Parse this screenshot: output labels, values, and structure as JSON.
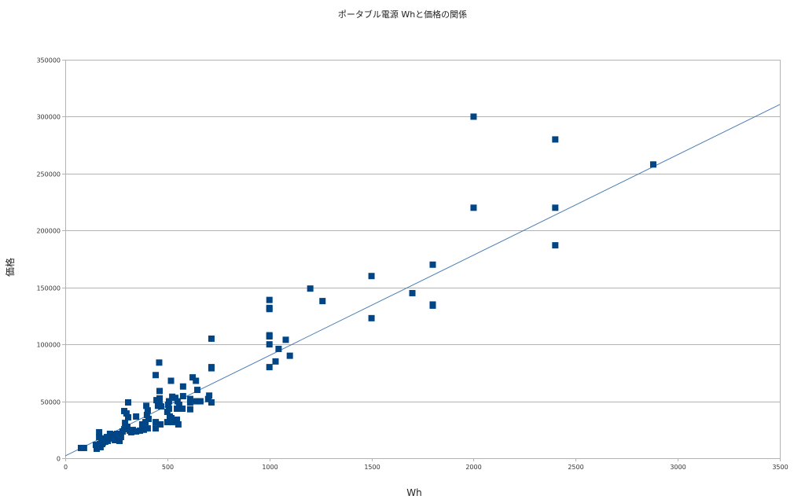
{
  "chart_data": {
    "type": "scatter",
    "title": "ポータブル電源 Whと価格の関係",
    "xlabel": "Wh",
    "ylabel": "価格",
    "xlim": [
      0,
      3500
    ],
    "ylim": [
      0,
      350000
    ],
    "xticks": [
      0,
      500,
      1000,
      1500,
      2000,
      2500,
      3000,
      3500
    ],
    "yticks": [
      0,
      50000,
      100000,
      150000,
      200000,
      250000,
      300000,
      350000
    ],
    "grid": "horizontal",
    "marker": "square",
    "marker_color": "#004586",
    "grid_color": "#b3b3b3",
    "trendline": {
      "type": "linear",
      "slope": 88.2,
      "intercept": 2000,
      "color": "#4a7eb5"
    },
    "points": [
      [
        77,
        9000
      ],
      [
        92,
        9000
      ],
      [
        150,
        11700
      ],
      [
        154,
        8300
      ],
      [
        162,
        10400
      ],
      [
        166,
        22800
      ],
      [
        166,
        18600
      ],
      [
        169,
        12400
      ],
      [
        173,
        9700
      ],
      [
        177,
        16600
      ],
      [
        181,
        12400
      ],
      [
        185,
        13800
      ],
      [
        193,
        17300
      ],
      [
        196,
        14500
      ],
      [
        204,
        18600
      ],
      [
        208,
        15200
      ],
      [
        219,
        21400
      ],
      [
        219,
        17300
      ],
      [
        231,
        17900
      ],
      [
        239,
        20700
      ],
      [
        243,
        19300
      ],
      [
        243,
        15900
      ],
      [
        254,
        21400
      ],
      [
        258,
        15900
      ],
      [
        266,
        20700
      ],
      [
        266,
        15200
      ],
      [
        273,
        18600
      ],
      [
        281,
        23500
      ],
      [
        289,
        25500
      ],
      [
        289,
        41400
      ],
      [
        293,
        31000
      ],
      [
        300,
        39300
      ],
      [
        304,
        27600
      ],
      [
        308,
        49000
      ],
      [
        308,
        35900
      ],
      [
        316,
        24200
      ],
      [
        323,
        22800
      ],
      [
        331,
        24800
      ],
      [
        347,
        36600
      ],
      [
        347,
        23500
      ],
      [
        366,
        24200
      ],
      [
        377,
        29700
      ],
      [
        385,
        25000
      ],
      [
        393,
        31700
      ],
      [
        397,
        46000
      ],
      [
        400,
        38000
      ],
      [
        404,
        42000
      ],
      [
        404,
        26200
      ],
      [
        408,
        34500
      ],
      [
        443,
        73000
      ],
      [
        443,
        31700
      ],
      [
        443,
        26200
      ],
      [
        447,
        51000
      ],
      [
        454,
        46000
      ],
      [
        460,
        84000
      ],
      [
        462,
        59000
      ],
      [
        462,
        52500
      ],
      [
        462,
        49000
      ],
      [
        466,
        29700
      ],
      [
        470,
        45500
      ],
      [
        500,
        40700
      ],
      [
        500,
        31700
      ],
      [
        504,
        47000
      ],
      [
        508,
        50000
      ],
      [
        508,
        43500
      ],
      [
        512,
        36600
      ],
      [
        518,
        68000
      ],
      [
        520,
        35200
      ],
      [
        524,
        54000
      ],
      [
        527,
        31700
      ],
      [
        539,
        53000
      ],
      [
        547,
        43500
      ],
      [
        547,
        33800
      ],
      [
        550,
        50000
      ],
      [
        554,
        29700
      ],
      [
        558,
        47000
      ],
      [
        574,
        43500
      ],
      [
        577,
        63000
      ],
      [
        577,
        54500
      ],
      [
        612,
        52000
      ],
      [
        612,
        49000
      ],
      [
        612,
        43000
      ],
      [
        624,
        71000
      ],
      [
        640,
        68000
      ],
      [
        643,
        50000
      ],
      [
        647,
        60000
      ],
      [
        662,
        50000
      ],
      [
        700,
        52000
      ],
      [
        705,
        55000
      ],
      [
        716,
        49000
      ],
      [
        716,
        105000
      ],
      [
        716,
        80000
      ],
      [
        716,
        79000
      ],
      [
        1000,
        139000
      ],
      [
        1000,
        132000
      ],
      [
        1000,
        131000
      ],
      [
        1000,
        108000
      ],
      [
        1000,
        107000
      ],
      [
        1000,
        100000
      ],
      [
        1000,
        80000
      ],
      [
        1030,
        85000
      ],
      [
        1045,
        96000
      ],
      [
        1080,
        104000
      ],
      [
        1100,
        90000
      ],
      [
        1200,
        149000
      ],
      [
        1260,
        138000
      ],
      [
        1500,
        160000
      ],
      [
        1500,
        123000
      ],
      [
        1700,
        145000
      ],
      [
        1800,
        170000
      ],
      [
        1800,
        135000
      ],
      [
        1800,
        134000
      ],
      [
        2000,
        300000
      ],
      [
        2000,
        220000
      ],
      [
        2400,
        280000
      ],
      [
        2400,
        220000
      ],
      [
        2400,
        187000
      ],
      [
        2880,
        258000
      ]
    ]
  }
}
